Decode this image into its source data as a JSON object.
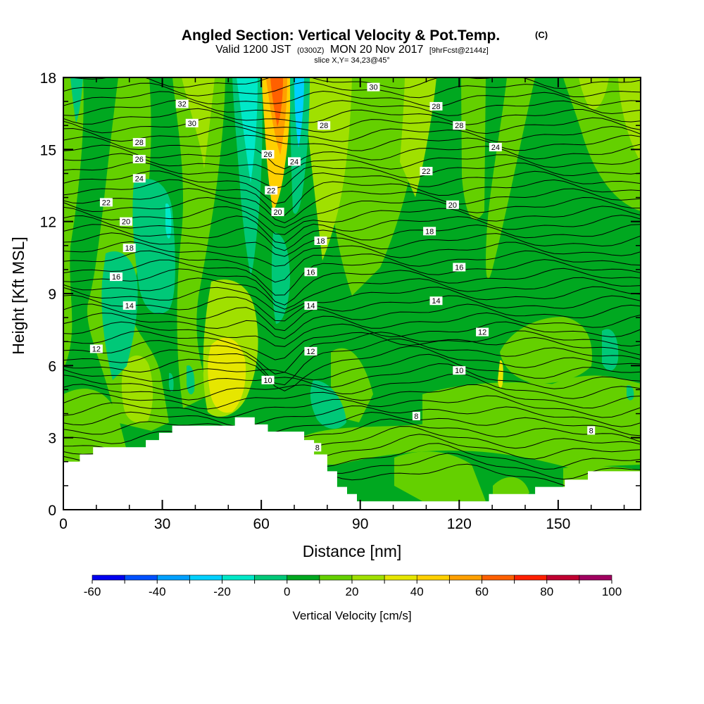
{
  "header": {
    "title_main": "Angled Section: Vertical Velocity & Pot.Temp.",
    "title_unit": "(C)",
    "valid_a": "Valid 1200 JST",
    "valid_b": "(0300Z)",
    "valid_c": "MON 20 Nov 2017",
    "valid_d": "[9hrFcst@2144z]",
    "slice": "slice X,Y= 34,23@45°"
  },
  "chart_data": {
    "type": "heatmap",
    "xlabel": "Distance [nm]",
    "ylabel": "Height [Kft MSL]",
    "xlim": [
      0,
      175
    ],
    "ylim": [
      0,
      18
    ],
    "x_ticks": [
      "0",
      "30",
      "60",
      "90",
      "120",
      "150"
    ],
    "y_ticks": [
      "0",
      "3",
      "6",
      "9",
      "12",
      "15",
      "18"
    ],
    "colorbar": {
      "label": "Vertical Velocity [cm/s]",
      "tick_labels": [
        "-60",
        "-40",
        "-20",
        "0",
        "20",
        "40",
        "60",
        "80",
        "100"
      ],
      "bins": [
        -60,
        -50,
        -40,
        -30,
        -20,
        -10,
        0,
        10,
        20,
        30,
        40,
        50,
        60,
        70,
        80,
        90,
        100
      ],
      "colors": [
        "#0000f0",
        "#0050ff",
        "#00a0ff",
        "#00d0ff",
        "#00e8c8",
        "#00c878",
        "#00a820",
        "#64d000",
        "#a0e000",
        "#e6e600",
        "#ffd000",
        "#ffa000",
        "#ff6000",
        "#ff2000",
        "#c00030",
        "#a00060",
        "#600080"
      ]
    },
    "terrain": [
      [
        0,
        2.0
      ],
      [
        5,
        2.0
      ],
      [
        5,
        2.3
      ],
      [
        9,
        2.3
      ],
      [
        9,
        2.6
      ],
      [
        25,
        2.6
      ],
      [
        25,
        2.9
      ],
      [
        29,
        2.9
      ],
      [
        29,
        3.2
      ],
      [
        33,
        3.2
      ],
      [
        33,
        3.5
      ],
      [
        52,
        3.5
      ],
      [
        52,
        3.85
      ],
      [
        58,
        3.85
      ],
      [
        58,
        3.55
      ],
      [
        62,
        3.55
      ],
      [
        62,
        3.25
      ],
      [
        73,
        3.25
      ],
      [
        73,
        2.9
      ],
      [
        76,
        2.9
      ],
      [
        76,
        2.3
      ],
      [
        80,
        2.3
      ],
      [
        80,
        1.6
      ],
      [
        83,
        1.6
      ],
      [
        83,
        0.95
      ],
      [
        86,
        0.95
      ],
      [
        86,
        0.65
      ],
      [
        89,
        0.65
      ],
      [
        89,
        0.35
      ],
      [
        129,
        0.35
      ],
      [
        129,
        0.65
      ],
      [
        143,
        0.65
      ],
      [
        143,
        0.95
      ],
      [
        152,
        0.95
      ],
      [
        152,
        1.25
      ],
      [
        159,
        1.25
      ],
      [
        159,
        1.6
      ],
      [
        175,
        1.6
      ]
    ],
    "theta_contours": [
      {
        "value": "8",
        "label_at": [
          [
            107,
            3.9
          ],
          [
            160,
            3.3
          ],
          [
            77,
            2.6
          ]
        ]
      },
      {
        "value": "10",
        "label_at": [
          [
            62,
            5.4
          ],
          [
            120,
            5.8
          ]
        ]
      },
      {
        "value": "12",
        "label_at": [
          [
            10,
            6.7
          ],
          [
            75,
            6.6
          ],
          [
            127,
            7.4
          ]
        ]
      },
      {
        "value": "14",
        "label_at": [
          [
            20,
            8.5
          ],
          [
            75,
            8.5
          ],
          [
            113,
            8.7
          ]
        ]
      },
      {
        "value": "16",
        "label_at": [
          [
            16,
            9.7
          ],
          [
            75,
            9.9
          ],
          [
            120,
            10.1
          ]
        ]
      },
      {
        "value": "18",
        "label_at": [
          [
            20,
            10.9
          ],
          [
            78,
            11.2
          ],
          [
            111,
            11.6
          ]
        ]
      },
      {
        "value": "20",
        "label_at": [
          [
            19,
            12.0
          ],
          [
            65,
            12.4
          ],
          [
            118,
            12.7
          ]
        ]
      },
      {
        "value": "22",
        "label_at": [
          [
            13,
            12.8
          ],
          [
            63,
            13.3
          ],
          [
            110,
            14.1
          ]
        ]
      },
      {
        "value": "24",
        "label_at": [
          [
            23,
            13.8
          ],
          [
            70,
            14.5
          ],
          [
            131,
            15.1
          ]
        ]
      },
      {
        "value": "26",
        "label_at": [
          [
            23,
            14.6
          ],
          [
            62,
            14.8
          ]
        ]
      },
      {
        "value": "28",
        "label_at": [
          [
            23,
            15.3
          ],
          [
            79,
            16.0
          ],
          [
            113,
            16.8
          ],
          [
            120,
            16.0
          ]
        ]
      },
      {
        "value": "30",
        "label_at": [
          [
            39,
            16.1
          ],
          [
            94,
            17.6
          ]
        ]
      },
      {
        "value": "32",
        "label_at": [
          [
            36,
            16.9
          ]
        ]
      }
    ]
  }
}
